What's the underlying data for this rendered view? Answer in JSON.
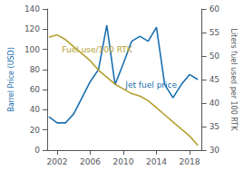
{
  "chart_data": {
    "type": "line",
    "x": [
      2001,
      2002,
      2003,
      2004,
      2005,
      2006,
      2007,
      2008,
      2009,
      2010,
      2011,
      2012,
      2013,
      2014,
      2015,
      2016,
      2017,
      2018,
      2019
    ],
    "series": [
      {
        "color": "#1a6faf",
        "values": [
          33,
          27,
          27,
          36,
          52,
          68,
          80,
          124,
          65,
          86,
          108,
          113,
          108,
          122,
          65,
          52,
          65,
          75,
          70
        ]
      },
      {
        "color": "#b5a030",
        "axis": "y2",
        "values": [
          54,
          54.5,
          53.5,
          52,
          50.5,
          49,
          47,
          45.5,
          44,
          43,
          42,
          41.5,
          40.5,
          39,
          37.5,
          36,
          34.5,
          33,
          31
        ]
      }
    ],
    "ylabel": "Barrel Price (USD)",
    "y2label": "Liters fuel used per 100 RTK",
    "xlim": [
      2000.8,
      2019.5
    ],
    "xticks": [
      2002,
      2006,
      2010,
      2014,
      2018
    ],
    "ylim": [
      0,
      140
    ],
    "yticks": [
      0,
      20,
      40,
      60,
      80,
      100,
      120,
      140
    ],
    "y2lim": [
      30,
      60
    ],
    "y2ticks": [
      30,
      35,
      40,
      45,
      50,
      55,
      60
    ],
    "annotations": [
      "Jet fuel price",
      "Fuel use/100 RTK"
    ],
    "grid": false
  }
}
